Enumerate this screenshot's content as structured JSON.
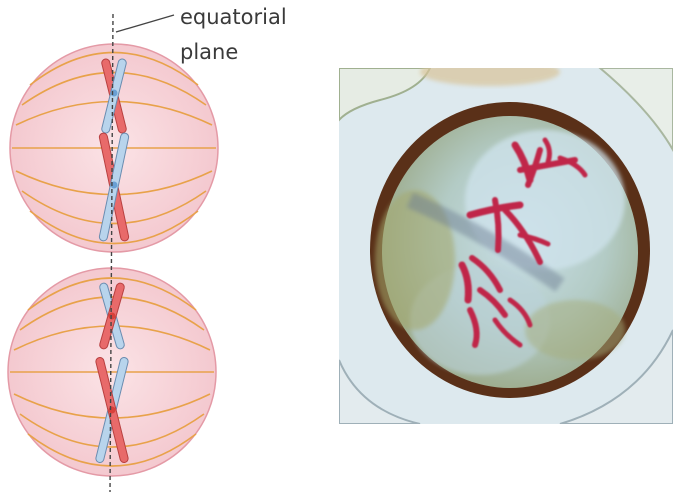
{
  "annotation": {
    "line1": "equatorial",
    "line2": "plane"
  },
  "colors": {
    "cell_fill": "#f7d3d8",
    "cell_stroke": "#e49aa6",
    "spindle": "#e8a24a",
    "chromosome_red": "#e86a6a",
    "chromosome_blue": "#b8d4ec",
    "centromere_blue": "#6aa0d4",
    "centromere_red": "#d8403a",
    "photo_background": "#dde9ee",
    "photo_cell_wall": "#5a3018",
    "photo_cytoplasm": "#b9cfc7",
    "photo_chromosome": "#c0284a"
  },
  "cells": [
    {
      "name": "metaphase-cell-top",
      "homologs": [
        {
          "red_on": "left"
        },
        {
          "red_on": "left"
        }
      ]
    },
    {
      "name": "metaphase-cell-bottom",
      "homologs": [
        {
          "red_on": "right"
        },
        {
          "red_on": "right"
        }
      ]
    }
  ]
}
